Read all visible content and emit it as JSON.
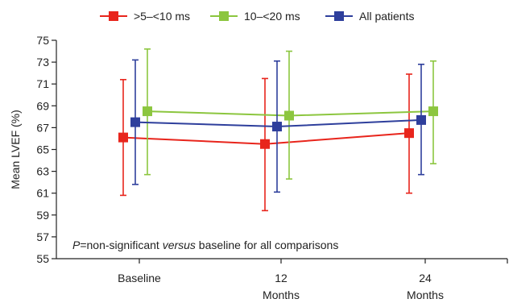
{
  "chart_data": {
    "type": "line",
    "title": "",
    "xlabel": "",
    "ylabel": "Mean LVEF (%)",
    "ylim": [
      55,
      75
    ],
    "yticks": [
      55,
      57,
      59,
      61,
      63,
      65,
      67,
      69,
      71,
      73,
      75
    ],
    "categories": [
      {
        "line1": "Baseline",
        "line2": ""
      },
      {
        "line1": "12",
        "line2": "Months"
      },
      {
        "line1": "24",
        "line2": "Months"
      }
    ],
    "grid": false,
    "legend_position": "top-center",
    "annotation": {
      "p_symbol": "P",
      "part1": "=non-significant ",
      "italic_word": "versus",
      "part2": " baseline for all comparisons"
    },
    "series": [
      {
        "name": ">5–<10 ms",
        "color": "#e8251c",
        "values": [
          66.1,
          65.5,
          66.5
        ],
        "upper": [
          71.4,
          71.5,
          71.9
        ],
        "lower": [
          60.8,
          59.4,
          61.0
        ]
      },
      {
        "name": "10–<20 ms",
        "color": "#8cc63f",
        "values": [
          68.5,
          68.1,
          68.5
        ],
        "upper": [
          74.2,
          74.0,
          73.1
        ],
        "lower": [
          62.7,
          62.3,
          63.7
        ]
      },
      {
        "name": "All patients",
        "color": "#2e3f9c",
        "values": [
          67.5,
          67.1,
          67.7
        ],
        "upper": [
          73.2,
          73.1,
          72.8
        ],
        "lower": [
          61.8,
          61.1,
          62.7
        ]
      }
    ]
  }
}
